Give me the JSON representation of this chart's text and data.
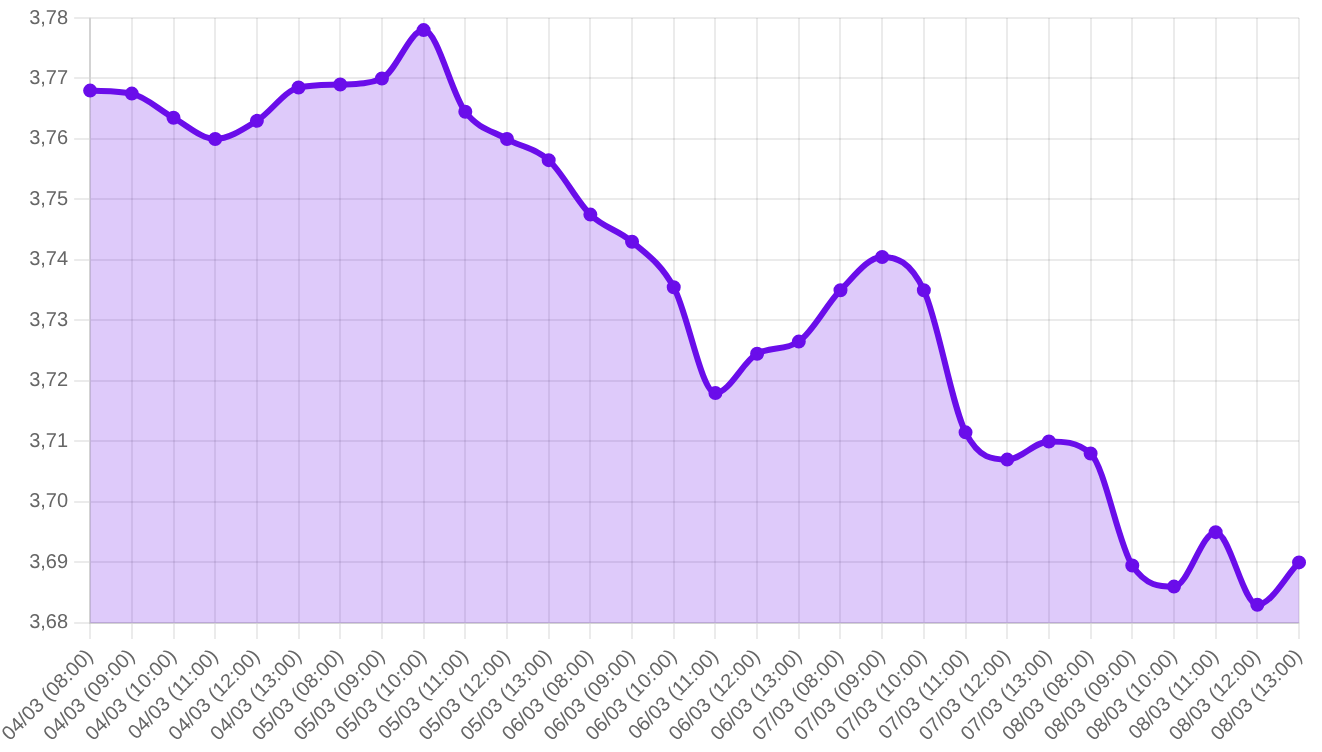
{
  "chart_data": {
    "type": "area",
    "categories": [
      "04/03 (08:00)",
      "04/03 (09:00)",
      "04/03 (10:00)",
      "04/03 (11:00)",
      "04/03 (12:00)",
      "04/03 (13:00)",
      "05/03 (08:00)",
      "05/03 (09:00)",
      "05/03 (10:00)",
      "05/03 (11:00)",
      "05/03 (12:00)",
      "05/03 (13:00)",
      "06/03 (08:00)",
      "06/03 (09:00)",
      "06/03 (10:00)",
      "06/03 (11:00)",
      "06/03 (12:00)",
      "06/03 (13:00)",
      "07/03 (08:00)",
      "07/03 (09:00)",
      "07/03 (10:00)",
      "07/03 (11:00)",
      "07/03 (12:00)",
      "07/03 (13:00)",
      "08/03 (08:00)",
      "08/03 (09:00)",
      "08/03 (10:00)",
      "08/03 (11:00)",
      "08/03 (12:00)",
      "08/03 (13:00)"
    ],
    "series": [
      {
        "color": "#6a0dea",
        "values": [
          3.768,
          3.7675,
          3.7635,
          3.76,
          3.763,
          3.7685,
          3.769,
          3.77,
          3.778,
          3.7645,
          3.76,
          3.7565,
          3.7475,
          3.743,
          3.7355,
          3.718,
          3.7245,
          3.7265,
          3.735,
          3.7405,
          3.735,
          3.7115,
          3.707,
          3.71,
          3.708,
          3.6895,
          3.686,
          3.695,
          3.683,
          3.69
        ]
      }
    ],
    "ylim": [
      3.68,
      3.78
    ],
    "yticks": [
      {
        "value": 3.68,
        "label": "3,68"
      },
      {
        "value": 3.69,
        "label": "3,69"
      },
      {
        "value": 3.7,
        "label": "3,70"
      },
      {
        "value": 3.71,
        "label": "3,71"
      },
      {
        "value": 3.72,
        "label": "3,72"
      },
      {
        "value": 3.73,
        "label": "3,73"
      },
      {
        "value": 3.74,
        "label": "3,74"
      },
      {
        "value": 3.75,
        "label": "3,75"
      },
      {
        "value": 3.76,
        "label": "3,76"
      },
      {
        "value": 3.77,
        "label": "3,77"
      },
      {
        "value": 3.78,
        "label": "3,78"
      }
    ],
    "grid": true,
    "legend": false,
    "marker": "circle",
    "line_style": "solid"
  }
}
